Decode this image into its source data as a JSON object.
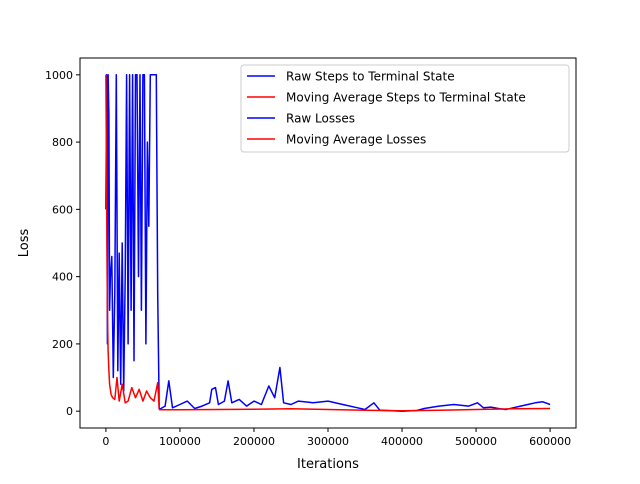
{
  "chart_data": {
    "type": "line",
    "title": "",
    "xlabel": "Iterations",
    "ylabel": "Loss",
    "xlim": [
      -35000,
      635000
    ],
    "ylim": [
      -50,
      1050
    ],
    "x_ticks": [
      0,
      100000,
      200000,
      300000,
      400000,
      500000,
      600000
    ],
    "x_tick_labels": [
      "0",
      "100000",
      "200000",
      "300000",
      "400000",
      "500000",
      "600000"
    ],
    "y_ticks": [
      0,
      200,
      400,
      600,
      800,
      1000
    ],
    "y_tick_labels": [
      "0",
      "200",
      "400",
      "600",
      "800",
      "1000"
    ],
    "grid": false,
    "legend_position": "top-right",
    "series": [
      {
        "name": "Raw Steps to Terminal State",
        "color": "#0000ff",
        "x": [
          0,
          1000,
          2000,
          3000,
          4000,
          5000,
          6000,
          8000,
          10000,
          12000,
          14000,
          16000,
          18000,
          20000,
          22000,
          24000,
          26000,
          28000,
          30000,
          32000,
          34000,
          36000,
          38000,
          40000,
          42000,
          44000,
          46000,
          48000,
          50000,
          52000,
          54000,
          56000,
          58000,
          60000,
          62000,
          64000,
          66000,
          68000,
          70000,
          72000
        ],
        "y": [
          600,
          1000,
          200,
          1000,
          880,
          300,
          400,
          460,
          100,
          350,
          1000,
          120,
          470,
          80,
          500,
          60,
          400,
          1000,
          200,
          1000,
          300,
          1000,
          150,
          1000,
          1000,
          400,
          1000,
          300,
          1000,
          1000,
          200,
          800,
          550,
          1000,
          1000,
          1000,
          1000,
          1000,
          350,
          5
        ]
      },
      {
        "name": "Moving Average Steps to Terminal State",
        "color": "#ff0000",
        "x": [
          0,
          1000,
          2000,
          3000,
          4000,
          5000,
          7000,
          9000,
          12000,
          15000,
          18000,
          22000,
          26000,
          30000,
          35000,
          40000,
          45000,
          50000,
          55000,
          60000,
          65000,
          70000,
          72000
        ],
        "y": [
          1000,
          600,
          300,
          180,
          120,
          80,
          50,
          40,
          35,
          100,
          30,
          80,
          25,
          30,
          70,
          40,
          65,
          30,
          60,
          40,
          30,
          85,
          5
        ]
      },
      {
        "name": "Raw Losses",
        "color": "#0000ff",
        "x": [
          72000,
          80000,
          85000,
          90000,
          100000,
          110000,
          120000,
          130000,
          140000,
          143000,
          148000,
          152000,
          160000,
          165000,
          170000,
          180000,
          190000,
          200000,
          210000,
          220000,
          228000,
          235000,
          240000,
          250000,
          260000,
          280000,
          300000,
          320000,
          340000,
          350000,
          362000,
          370000,
          380000,
          400000,
          420000,
          430000,
          450000,
          470000,
          490000,
          502000,
          510000,
          520000,
          530000,
          540000,
          550000,
          560000,
          570000,
          580000,
          590000,
          600000
        ],
        "y": [
          5,
          15,
          90,
          10,
          20,
          30,
          8,
          15,
          25,
          65,
          70,
          20,
          30,
          90,
          25,
          35,
          15,
          30,
          20,
          75,
          40,
          130,
          25,
          20,
          30,
          25,
          30,
          20,
          10,
          5,
          25,
          3,
          2,
          0,
          2,
          8,
          15,
          20,
          15,
          25,
          10,
          12,
          8,
          5,
          10,
          15,
          20,
          25,
          28,
          20
        ]
      },
      {
        "name": "Moving Average Losses",
        "color": "#ff0000",
        "x": [
          72000,
          100000,
          150000,
          200000,
          250000,
          300000,
          350000,
          400000,
          450000,
          500000,
          550000,
          600000
        ],
        "y": [
          4,
          4,
          5,
          6,
          7,
          5,
          3,
          1,
          3,
          5,
          7,
          8
        ]
      }
    ]
  }
}
